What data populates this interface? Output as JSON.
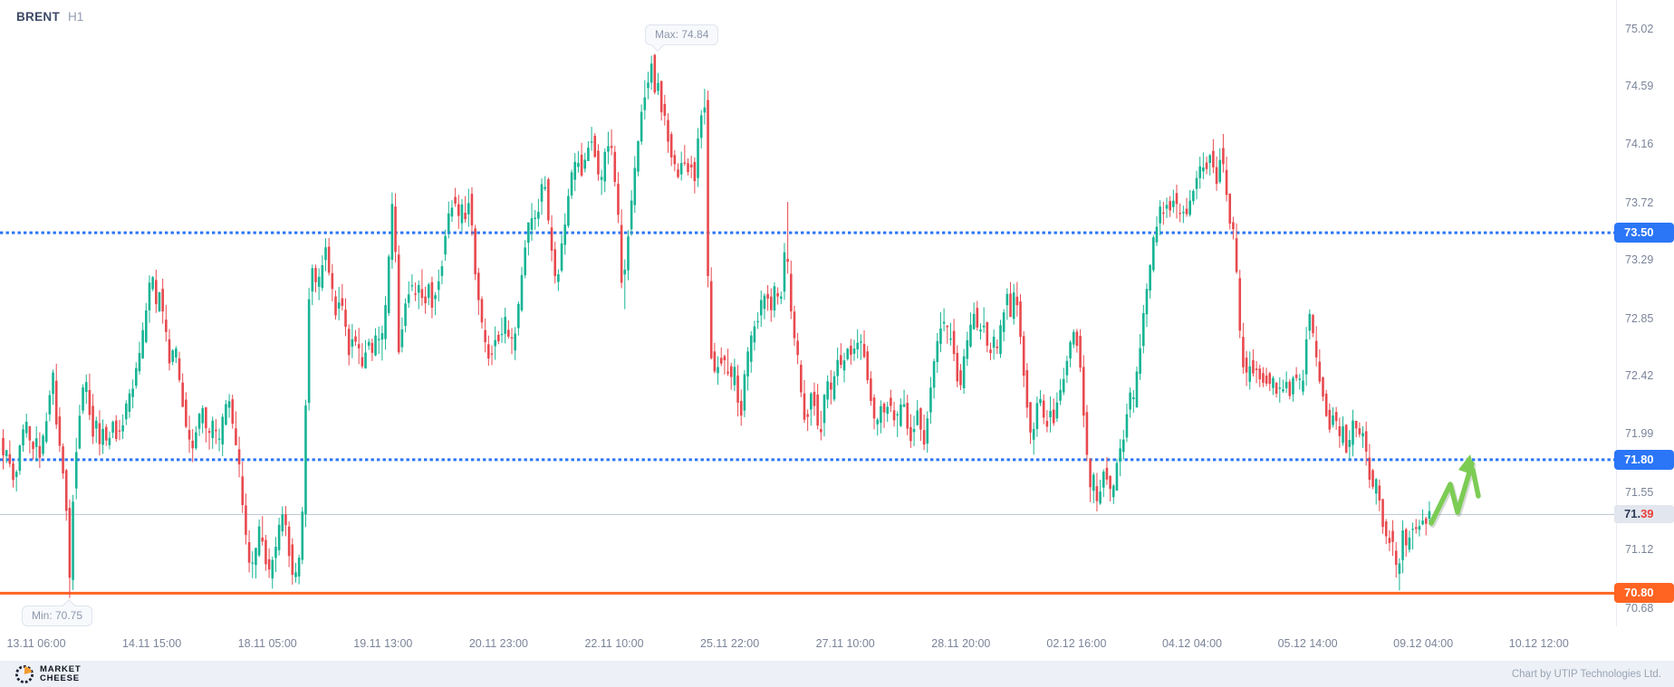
{
  "header": {
    "symbol": "BRENT",
    "timeframe": "H1"
  },
  "footer": {
    "logo_line1": "MARKET",
    "logo_line2": "CHEESE",
    "credit": "Chart by UTIP Technologies Ltd."
  },
  "colors": {
    "candle_up": "#16b494",
    "candle_down": "#e8494e",
    "level_blue": "#2b76f7",
    "level_orange": "#ff6422",
    "current_line": "#bcc4d2",
    "axis_text": "#7b8499",
    "arrow_green": "#7ccc54"
  },
  "chart_data": {
    "type": "candlestick",
    "symbol": "BRENT",
    "timeframe": "H1",
    "title": "BRENT H1 candlestick chart",
    "y_ticks": [
      75.02,
      74.59,
      74.16,
      73.72,
      73.29,
      72.85,
      72.42,
      71.99,
      71.55,
      71.12,
      70.68
    ],
    "x_ticks": [
      "13.11 06:00",
      "14.11 15:00",
      "18.11 05:00",
      "19.11 13:00",
      "20.11 23:00",
      "22.11 10:00",
      "25.11 22:00",
      "27.11 10:00",
      "28.11 20:00",
      "02.12 16:00",
      "04.12 04:00",
      "05.12 14:00",
      "09.12 04:00",
      "10.12 12:00"
    ],
    "ylim": [
      70.68,
      75.02
    ],
    "grid": "off",
    "levels": [
      {
        "price": 73.5,
        "label": "73.50",
        "style": "dotted",
        "color": "#2b76f7"
      },
      {
        "price": 71.8,
        "label": "71.80",
        "style": "dotted",
        "color": "#2b76f7"
      },
      {
        "price": 70.8,
        "label": "70.80",
        "style": "solid",
        "color": "#ff6422"
      }
    ],
    "current_price": 71.39,
    "current_price_main": "71.",
    "current_price_accent": "39",
    "annotations": {
      "max_label": "Max: 74.84",
      "max_value": 74.84,
      "min_label": "Min: 70.75",
      "min_value": 70.75
    },
    "price_path": [
      [
        2,
        71.95
      ],
      [
        6,
        71.78
      ],
      [
        10,
        71.9
      ],
      [
        14,
        71.7
      ],
      [
        18,
        71.62
      ],
      [
        22,
        71.82
      ],
      [
        26,
        72.0
      ],
      [
        30,
        72.08
      ],
      [
        34,
        71.95
      ],
      [
        38,
        71.85
      ],
      [
        42,
        71.95
      ],
      [
        46,
        71.85
      ],
      [
        50,
        72.0
      ],
      [
        54,
        72.15
      ],
      [
        58,
        72.35
      ],
      [
        61,
        72.45
      ],
      [
        64,
        72.1
      ],
      [
        67,
        71.9
      ],
      [
        70,
        71.8
      ],
      [
        73,
        71.65
      ],
      [
        76,
        71.3
      ],
      [
        78,
        70.75
      ],
      [
        81,
        71.35
      ],
      [
        84,
        71.75
      ],
      [
        88,
        72.05
      ],
      [
        92,
        72.3
      ],
      [
        96,
        72.42
      ],
      [
        100,
        72.2
      ],
      [
        104,
        72.0
      ],
      [
        108,
        72.1
      ],
      [
        112,
        71.95
      ],
      [
        116,
        72.02
      ],
      [
        120,
        71.92
      ],
      [
        126,
        72.08
      ],
      [
        132,
        71.95
      ],
      [
        138,
        72.12
      ],
      [
        145,
        72.3
      ],
      [
        152,
        72.45
      ],
      [
        158,
        72.65
      ],
      [
        164,
        72.95
      ],
      [
        169,
        73.19
      ],
      [
        174,
        72.95
      ],
      [
        178,
        73.06
      ],
      [
        183,
        72.8
      ],
      [
        189,
        72.55
      ],
      [
        195,
        72.64
      ],
      [
        201,
        72.36
      ],
      [
        207,
        72.08
      ],
      [
        213,
        71.86
      ],
      [
        219,
        72.04
      ],
      [
        225,
        72.18
      ],
      [
        231,
        71.94
      ],
      [
        237,
        72.06
      ],
      [
        243,
        71.92
      ],
      [
        249,
        72.14
      ],
      [
        255,
        72.24
      ],
      [
        261,
        71.98
      ],
      [
        266,
        71.72
      ],
      [
        270,
        71.44
      ],
      [
        274,
        71.15
      ],
      [
        279,
        70.94
      ],
      [
        284,
        71.12
      ],
      [
        289,
        71.3
      ],
      [
        294,
        71.1
      ],
      [
        299,
        70.93
      ],
      [
        304,
        71.06
      ],
      [
        309,
        71.28
      ],
      [
        314,
        71.44
      ],
      [
        319,
        71.22
      ],
      [
        324,
        70.98
      ],
      [
        329,
        70.9
      ],
      [
        333,
        71.12
      ],
      [
        336,
        71.4
      ],
      [
        339,
        72.1
      ],
      [
        342,
        72.95
      ],
      [
        347,
        73.25
      ],
      [
        352,
        73.02
      ],
      [
        357,
        73.28
      ],
      [
        362,
        73.42
      ],
      [
        367,
        73.12
      ],
      [
        372,
        72.88
      ],
      [
        377,
        73.04
      ],
      [
        382,
        72.82
      ],
      [
        387,
        72.6
      ],
      [
        392,
        72.78
      ],
      [
        397,
        72.62
      ],
      [
        402,
        72.52
      ],
      [
        407,
        72.7
      ],
      [
        412,
        72.6
      ],
      [
        417,
        72.76
      ],
      [
        422,
        72.62
      ],
      [
        427,
        72.9
      ],
      [
        432,
        73.4
      ],
      [
        436,
        73.8
      ],
      [
        439,
        73.2
      ],
      [
        442,
        72.62
      ],
      [
        446,
        72.82
      ],
      [
        450,
        73.0
      ],
      [
        455,
        73.12
      ],
      [
        460,
        73.0
      ],
      [
        465,
        73.15
      ],
      [
        470,
        72.98
      ],
      [
        475,
        73.1
      ],
      [
        480,
        72.95
      ],
      [
        485,
        73.12
      ],
      [
        490,
        73.3
      ],
      [
        495,
        73.55
      ],
      [
        500,
        73.7
      ],
      [
        503,
        73.82
      ],
      [
        507,
        73.55
      ],
      [
        511,
        73.72
      ],
      [
        515,
        73.6
      ],
      [
        519,
        73.76
      ],
      [
        523,
        73.52
      ],
      [
        527,
        73.18
      ],
      [
        531,
        72.9
      ],
      [
        535,
        72.75
      ],
      [
        539,
        72.68
      ],
      [
        543,
        72.52
      ],
      [
        548,
        72.75
      ],
      [
        553,
        72.68
      ],
      [
        558,
        72.85
      ],
      [
        563,
        72.75
      ],
      [
        568,
        72.64
      ],
      [
        572,
        72.8
      ],
      [
        576,
        73.1
      ],
      [
        580,
        73.35
      ],
      [
        584,
        73.5
      ],
      [
        589,
        73.65
      ],
      [
        594,
        73.6
      ],
      [
        599,
        73.8
      ],
      [
        603,
        73.9
      ],
      [
        607,
        73.6
      ],
      [
        611,
        73.4
      ],
      [
        615,
        73.1
      ],
      [
        619,
        73.25
      ],
      [
        624,
        73.5
      ],
      [
        629,
        73.75
      ],
      [
        634,
        73.95
      ],
      [
        640,
        74.05
      ],
      [
        645,
        73.95
      ],
      [
        650,
        74.15
      ],
      [
        655,
        74.22
      ],
      [
        660,
        74.02
      ],
      [
        665,
        73.85
      ],
      [
        670,
        74.12
      ],
      [
        675,
        74.2
      ],
      [
        680,
        73.92
      ],
      [
        685,
        73.55
      ],
      [
        689,
        73.0
      ],
      [
        694,
        73.4
      ],
      [
        699,
        73.75
      ],
      [
        704,
        74.05
      ],
      [
        709,
        74.35
      ],
      [
        714,
        74.58
      ],
      [
        719,
        74.72
      ],
      [
        722,
        74.84
      ],
      [
        725,
        74.55
      ],
      [
        728,
        74.66
      ],
      [
        732,
        74.42
      ],
      [
        736,
        74.32
      ],
      [
        741,
        74.15
      ],
      [
        746,
        74.02
      ],
      [
        751,
        73.94
      ],
      [
        756,
        74.1
      ],
      [
        760,
        73.92
      ],
      [
        764,
        74.06
      ],
      [
        768,
        73.86
      ],
      [
        772,
        74.16
      ],
      [
        776,
        74.42
      ],
      [
        779,
        74.55
      ],
      [
        781,
        74.3
      ],
      [
        783,
        73.3
      ],
      [
        785,
        72.7
      ],
      [
        788,
        72.52
      ],
      [
        792,
        72.42
      ],
      [
        796,
        72.6
      ],
      [
        800,
        72.46
      ],
      [
        804,
        72.56
      ],
      [
        808,
        72.36
      ],
      [
        812,
        72.5
      ],
      [
        816,
        72.22
      ],
      [
        819,
        72.08
      ],
      [
        823,
        72.36
      ],
      [
        827,
        72.56
      ],
      [
        832,
        72.72
      ],
      [
        837,
        72.86
      ],
      [
        842,
        72.96
      ],
      [
        847,
        73.06
      ],
      [
        852,
        72.92
      ],
      [
        857,
        73.08
      ],
      [
        862,
        72.96
      ],
      [
        866,
        73.12
      ],
      [
        869,
        73.45
      ],
      [
        870,
        73.77
      ],
      [
        872,
        73.05
      ],
      [
        875,
        72.88
      ],
      [
        879,
        72.65
      ],
      [
        883,
        72.52
      ],
      [
        887,
        72.28
      ],
      [
        891,
        72.05
      ],
      [
        895,
        72.2
      ],
      [
        899,
        72.34
      ],
      [
        903,
        72.14
      ],
      [
        907,
        71.98
      ],
      [
        911,
        72.22
      ],
      [
        915,
        72.4
      ],
      [
        919,
        72.28
      ],
      [
        923,
        72.44
      ],
      [
        927,
        72.58
      ],
      [
        931,
        72.5
      ],
      [
        936,
        72.64
      ],
      [
        941,
        72.54
      ],
      [
        946,
        72.7
      ],
      [
        951,
        72.62
      ],
      [
        954,
        72.72
      ],
      [
        958,
        72.5
      ],
      [
        962,
        72.28
      ],
      [
        966,
        72.1
      ],
      [
        970,
        72.05
      ],
      [
        974,
        72.2
      ],
      [
        978,
        72.12
      ],
      [
        982,
        72.24
      ],
      [
        986,
        72.15
      ],
      [
        991,
        72.05
      ],
      [
        995,
        72.18
      ],
      [
        999,
        72.28
      ],
      [
        1003,
        72.1
      ],
      [
        1007,
        71.96
      ],
      [
        1011,
        72.08
      ],
      [
        1015,
        72.2
      ],
      [
        1019,
        72.04
      ],
      [
        1022,
        71.87
      ],
      [
        1026,
        72.15
      ],
      [
        1030,
        72.4
      ],
      [
        1034,
        72.6
      ],
      [
        1038,
        72.74
      ],
      [
        1042,
        72.88
      ],
      [
        1046,
        72.7
      ],
      [
        1050,
        72.82
      ],
      [
        1054,
        72.6
      ],
      [
        1058,
        72.44
      ],
      [
        1062,
        72.35
      ],
      [
        1066,
        72.55
      ],
      [
        1070,
        72.7
      ],
      [
        1074,
        72.84
      ],
      [
        1078,
        72.92
      ],
      [
        1082,
        72.74
      ],
      [
        1086,
        72.88
      ],
      [
        1090,
        72.7
      ],
      [
        1094,
        72.54
      ],
      [
        1098,
        72.7
      ],
      [
        1102,
        72.6
      ],
      [
        1106,
        72.76
      ],
      [
        1110,
        72.92
      ],
      [
        1114,
        73.06
      ],
      [
        1118,
        72.86
      ],
      [
        1122,
        73.12
      ],
      [
        1126,
        72.88
      ],
      [
        1130,
        72.6
      ],
      [
        1134,
        72.34
      ],
      [
        1138,
        72.08
      ],
      [
        1141,
        71.86
      ],
      [
        1145,
        72.14
      ],
      [
        1149,
        72.3
      ],
      [
        1153,
        72.14
      ],
      [
        1157,
        72.04
      ],
      [
        1161,
        72.2
      ],
      [
        1165,
        72.1
      ],
      [
        1169,
        72.24
      ],
      [
        1173,
        72.3
      ],
      [
        1177,
        72.46
      ],
      [
        1181,
        72.6
      ],
      [
        1185,
        72.7
      ],
      [
        1189,
        72.78
      ],
      [
        1193,
        72.58
      ],
      [
        1197,
        72.28
      ],
      [
        1200,
        71.94
      ],
      [
        1203,
        71.68
      ],
      [
        1206,
        71.54
      ],
      [
        1209,
        71.64
      ],
      [
        1213,
        71.5
      ],
      [
        1217,
        71.62
      ],
      [
        1221,
        71.74
      ],
      [
        1225,
        71.6
      ],
      [
        1229,
        71.52
      ],
      [
        1233,
        71.68
      ],
      [
        1237,
        71.82
      ],
      [
        1241,
        71.96
      ],
      [
        1245,
        72.1
      ],
      [
        1249,
        72.26
      ],
      [
        1253,
        72.22
      ],
      [
        1257,
        72.46
      ],
      [
        1261,
        72.7
      ],
      [
        1265,
        72.92
      ],
      [
        1269,
        73.12
      ],
      [
        1273,
        73.32
      ],
      [
        1277,
        73.52
      ],
      [
        1281,
        73.68
      ],
      [
        1285,
        73.6
      ],
      [
        1289,
        73.76
      ],
      [
        1293,
        73.64
      ],
      [
        1297,
        73.78
      ],
      [
        1301,
        73.68
      ],
      [
        1305,
        73.6
      ],
      [
        1309,
        73.72
      ],
      [
        1313,
        73.64
      ],
      [
        1317,
        73.76
      ],
      [
        1321,
        73.86
      ],
      [
        1325,
        73.96
      ],
      [
        1329,
        74.06
      ],
      [
        1333,
        73.94
      ],
      [
        1337,
        74.1
      ],
      [
        1341,
        73.96
      ],
      [
        1345,
        73.88
      ],
      [
        1348,
        74.02
      ],
      [
        1350,
        74.25
      ],
      [
        1353,
        73.94
      ],
      [
        1357,
        73.74
      ],
      [
        1360,
        73.55
      ],
      [
        1363,
        73.5
      ],
      [
        1366,
        73.3
      ],
      [
        1369,
        72.95
      ],
      [
        1372,
        72.6
      ],
      [
        1375,
        72.5
      ],
      [
        1378,
        72.42
      ],
      [
        1382,
        72.56
      ],
      [
        1386,
        72.42
      ],
      [
        1390,
        72.5
      ],
      [
        1394,
        72.38
      ],
      [
        1398,
        72.46
      ],
      [
        1402,
        72.34
      ],
      [
        1406,
        72.42
      ],
      [
        1410,
        72.3
      ],
      [
        1414,
        72.36
      ],
      [
        1418,
        72.3
      ],
      [
        1422,
        72.36
      ],
      [
        1426,
        72.3
      ],
      [
        1430,
        72.42
      ],
      [
        1434,
        72.38
      ],
      [
        1438,
        72.35
      ],
      [
        1442,
        72.48
      ],
      [
        1445,
        72.9
      ],
      [
        1449,
        72.85
      ],
      [
        1453,
        72.65
      ],
      [
        1457,
        72.45
      ],
      [
        1461,
        72.3
      ],
      [
        1465,
        72.2
      ],
      [
        1469,
        72.05
      ],
      [
        1473,
        72.15
      ],
      [
        1477,
        72.05
      ],
      [
        1481,
        71.95
      ],
      [
        1485,
        72.05
      ],
      [
        1489,
        71.85
      ],
      [
        1493,
        72.0
      ],
      [
        1497,
        72.08
      ],
      [
        1501,
        71.97
      ],
      [
        1505,
        72.04
      ],
      [
        1509,
        71.88
      ],
      [
        1513,
        71.72
      ],
      [
        1517,
        71.58
      ],
      [
        1521,
        71.64
      ],
      [
        1525,
        71.48
      ],
      [
        1529,
        71.3
      ],
      [
        1533,
        71.18
      ],
      [
        1537,
        71.24
      ],
      [
        1541,
        71.08
      ],
      [
        1545,
        70.86
      ],
      [
        1548,
        71.12
      ],
      [
        1551,
        71.28
      ],
      [
        1554,
        71.12
      ],
      [
        1557,
        71.26
      ],
      [
        1560,
        71.18
      ],
      [
        1563,
        71.32
      ],
      [
        1566,
        71.24
      ],
      [
        1570,
        71.36
      ],
      [
        1574,
        71.3
      ],
      [
        1578,
        71.42
      ],
      [
        1581,
        71.39
      ]
    ],
    "trend_arrow": {
      "points": [
        [
          1580,
          578
        ],
        [
          1601,
          535
        ],
        [
          1609,
          566
        ],
        [
          1625,
          512
        ]
      ],
      "head": [
        [
          1623,
          502
        ],
        [
          1610,
          519
        ],
        [
          1630,
          526
        ]
      ],
      "tail": [
        [
          1626,
          519
        ],
        [
          1632,
          548
        ]
      ],
      "color": "#7ccc54"
    }
  }
}
